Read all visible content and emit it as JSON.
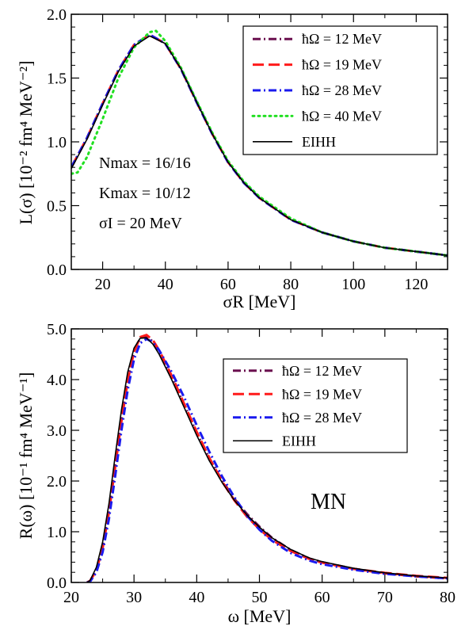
{
  "chart_data": [
    {
      "type": "line",
      "xlabel": "σR [MeV]",
      "ylabel": "L(σ) [10⁻² fm⁴ MeV⁻²]",
      "xlim": [
        10,
        130
      ],
      "ylim": [
        0,
        2.0
      ],
      "xticks": [
        20,
        40,
        60,
        80,
        100,
        120
      ],
      "yticks": [
        0.0,
        0.5,
        1.0,
        1.5,
        2.0
      ],
      "xtick_labels": [
        "20",
        "40",
        "60",
        "80",
        "100",
        "120"
      ],
      "ytick_labels": [
        "0.0",
        "0.5",
        "1.0",
        "1.5",
        "2.0"
      ],
      "legend_position": "top-right",
      "annotations": [
        "Nmax = 16/16",
        "Kmax = 10/12",
        "σI = 20 MeV"
      ],
      "series": [
        {
          "name": "ħΩ = 12 MeV",
          "color": "#6a0f4e",
          "dash": "dashdot",
          "x": [
            10,
            15,
            20,
            25,
            30,
            35,
            40,
            45,
            50,
            55,
            60,
            65,
            70,
            80,
            90,
            100,
            110,
            120,
            130
          ],
          "y": [
            0.8,
            1.03,
            1.3,
            1.56,
            1.76,
            1.84,
            1.77,
            1.57,
            1.31,
            1.06,
            0.84,
            0.68,
            0.56,
            0.39,
            0.29,
            0.22,
            0.17,
            0.14,
            0.11
          ]
        },
        {
          "name": "ħΩ = 19 MeV",
          "color": "#ff1a1a",
          "dash": "dashed",
          "x": [
            10,
            15,
            20,
            25,
            30,
            35,
            40,
            45,
            50,
            55,
            60,
            65,
            70,
            80,
            90,
            100,
            110,
            120,
            130
          ],
          "y": [
            0.8,
            1.03,
            1.3,
            1.56,
            1.76,
            1.84,
            1.77,
            1.57,
            1.31,
            1.06,
            0.84,
            0.68,
            0.56,
            0.39,
            0.29,
            0.22,
            0.17,
            0.14,
            0.11
          ]
        },
        {
          "name": "ħΩ = 28 MeV",
          "color": "#1a1aee",
          "dash": "dashdot",
          "x": [
            10,
            15,
            20,
            25,
            30,
            35,
            40,
            45,
            50,
            55,
            60,
            65,
            70,
            80,
            90,
            100,
            110,
            120,
            130
          ],
          "y": [
            0.8,
            1.03,
            1.3,
            1.56,
            1.76,
            1.84,
            1.77,
            1.57,
            1.31,
            1.06,
            0.84,
            0.68,
            0.56,
            0.39,
            0.29,
            0.22,
            0.17,
            0.14,
            0.11
          ]
        },
        {
          "name": "ħΩ = 40 MeV",
          "color": "#22e022",
          "dash": "dotted",
          "x": [
            10,
            12,
            15,
            20,
            25,
            30,
            35,
            37,
            40,
            45,
            50,
            55,
            60,
            65,
            70,
            80,
            90,
            100,
            110,
            120,
            130
          ],
          "y": [
            0.75,
            0.76,
            0.88,
            1.18,
            1.5,
            1.74,
            1.86,
            1.87,
            1.79,
            1.58,
            1.32,
            1.07,
            0.85,
            0.69,
            0.57,
            0.4,
            0.29,
            0.22,
            0.17,
            0.14,
            0.11
          ]
        },
        {
          "name": "EIHH",
          "color": "#000000",
          "dash": "solid",
          "x": [
            10,
            15,
            20,
            25,
            30,
            35,
            40,
            45,
            50,
            55,
            60,
            65,
            70,
            80,
            90,
            100,
            110,
            120,
            130
          ],
          "y": [
            0.79,
            1.02,
            1.29,
            1.55,
            1.75,
            1.83,
            1.77,
            1.57,
            1.31,
            1.06,
            0.84,
            0.68,
            0.56,
            0.39,
            0.29,
            0.22,
            0.17,
            0.14,
            0.11
          ]
        }
      ]
    },
    {
      "type": "line",
      "xlabel": "ω [MeV]",
      "ylabel": "R(ω) [10⁻¹ fm⁴ MeV⁻¹]",
      "xlim": [
        20,
        80
      ],
      "ylim": [
        0,
        5.0
      ],
      "xticks": [
        20,
        30,
        40,
        50,
        60,
        70,
        80
      ],
      "yticks": [
        0.0,
        1.0,
        2.0,
        3.0,
        4.0,
        5.0
      ],
      "xtick_labels": [
        "20",
        "30",
        "40",
        "50",
        "60",
        "70",
        "80"
      ],
      "ytick_labels": [
        "0.0",
        "1.0",
        "2.0",
        "3.0",
        "4.0",
        "5.0"
      ],
      "legend_position": "top-right",
      "annotations": [
        "MN"
      ],
      "series": [
        {
          "name": "ħΩ = 12 MeV",
          "color": "#6a0f4e",
          "dash": "dashdot",
          "x": [
            22.5,
            23,
            24,
            25,
            26,
            27,
            28,
            29,
            30,
            31,
            32,
            33,
            34,
            36,
            38,
            40,
            42,
            44,
            46,
            48,
            50,
            52,
            55,
            58,
            60,
            65,
            70,
            75,
            80
          ],
          "y": [
            0.0,
            0.03,
            0.25,
            0.7,
            1.4,
            2.3,
            3.2,
            4.0,
            4.55,
            4.82,
            4.85,
            4.75,
            4.55,
            4.05,
            3.5,
            2.95,
            2.45,
            2.02,
            1.65,
            1.35,
            1.1,
            0.88,
            0.64,
            0.47,
            0.4,
            0.27,
            0.18,
            0.12,
            0.08
          ]
        },
        {
          "name": "ħΩ = 19 MeV",
          "color": "#ff1a1a",
          "dash": "dashed",
          "x": [
            22.5,
            23,
            24,
            25,
            26,
            27,
            28,
            29,
            30,
            31,
            32,
            33,
            34,
            36,
            38,
            40,
            42,
            44,
            46,
            48,
            50,
            52,
            55,
            58,
            60,
            65,
            70,
            75,
            80
          ],
          "y": [
            0.0,
            0.03,
            0.24,
            0.68,
            1.38,
            2.28,
            3.18,
            3.98,
            4.55,
            4.84,
            4.88,
            4.78,
            4.58,
            4.08,
            3.52,
            2.97,
            2.46,
            2.0,
            1.62,
            1.3,
            1.05,
            0.84,
            0.62,
            0.46,
            0.39,
            0.27,
            0.19,
            0.13,
            0.09
          ]
        },
        {
          "name": "ħΩ = 28 MeV",
          "color": "#1a1aee",
          "dash": "dashdot",
          "x": [
            22.5,
            23,
            24,
            25,
            26,
            27,
            28,
            29,
            30,
            31,
            32,
            33,
            34,
            36,
            38,
            40,
            42,
            44,
            46,
            48,
            50,
            52,
            55,
            58,
            60,
            65,
            70,
            75,
            80
          ],
          "y": [
            0.0,
            0.02,
            0.2,
            0.6,
            1.25,
            2.1,
            3.0,
            3.8,
            4.4,
            4.72,
            4.8,
            4.74,
            4.58,
            4.15,
            3.65,
            3.1,
            2.58,
            2.1,
            1.68,
            1.32,
            1.04,
            0.82,
            0.58,
            0.43,
            0.36,
            0.25,
            0.17,
            0.12,
            0.08
          ]
        },
        {
          "name": "EIHH",
          "color": "#000000",
          "dash": "solid",
          "x": [
            22.5,
            23,
            24,
            25,
            26,
            27,
            28,
            29,
            30,
            31,
            32,
            33,
            34,
            36,
            38,
            40,
            42,
            44,
            46,
            48,
            50,
            52,
            55,
            58,
            60,
            65,
            70,
            75,
            80
          ],
          "y": [
            0.0,
            0.04,
            0.3,
            0.8,
            1.55,
            2.5,
            3.4,
            4.15,
            4.62,
            4.82,
            4.82,
            4.7,
            4.5,
            4.0,
            3.45,
            2.9,
            2.4,
            1.98,
            1.62,
            1.33,
            1.09,
            0.88,
            0.65,
            0.48,
            0.41,
            0.28,
            0.19,
            0.13,
            0.09
          ]
        }
      ]
    }
  ]
}
